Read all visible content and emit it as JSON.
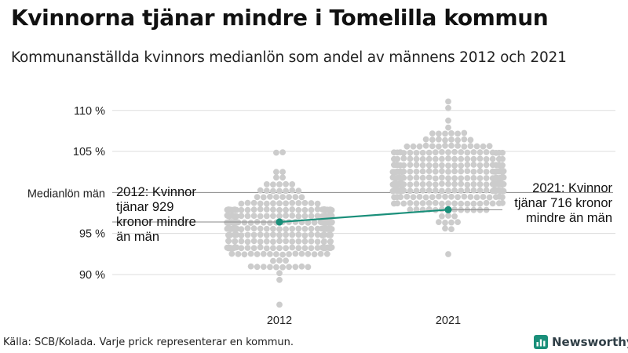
{
  "header": {
    "title": "Kvinnorna tjänar mindre i Tomelilla kommun",
    "subtitle": "Kommunanställda kvinnors medianlön som andel av männens 2012 och 2021"
  },
  "footer": {
    "source": "Källa: SCB/Kolada. Varje prick representerar en kommun.",
    "brand": "Newsworthy"
  },
  "colors": {
    "dots": "#cccccc",
    "highlight": "#1a8f7a",
    "gridline": "#dddddd",
    "reference_line": "#888888"
  },
  "chart_data": {
    "type": "scatter",
    "title": "Kvinnorna tjänar mindre i Tomelilla kommun",
    "subtitle": "Kommunanställda kvinnors medianlön som andel av männens 2012 och 2021",
    "categories": [
      "2012",
      "2021"
    ],
    "y_ticks": [
      90,
      95,
      105,
      110
    ],
    "y_tick_labels": [
      "90 %",
      "95 %",
      "105 %",
      "110 %"
    ],
    "ylim": [
      86,
      112
    ],
    "grid": true,
    "reference_line": {
      "value": 100,
      "label": "Medianlön män"
    },
    "distributions": [
      {
        "category": "2012",
        "min": 86.6,
        "max": 105.2,
        "median": 95.8
      },
      {
        "category": "2021",
        "min": 92.6,
        "max": 111.2,
        "median": 101.6
      }
    ],
    "highlight_series": {
      "name": "Tomelilla",
      "values": [
        96.4,
        97.9
      ]
    },
    "annotations": [
      {
        "category": "2012",
        "lines": [
          "2012: Kvinnor",
          "tjänar 929",
          "kronor mindre",
          "än män"
        ]
      },
      {
        "category": "2021",
        "lines": [
          "2021: Kvinnor",
          "tjänar 716 kronor",
          "mindre än män"
        ]
      }
    ]
  }
}
